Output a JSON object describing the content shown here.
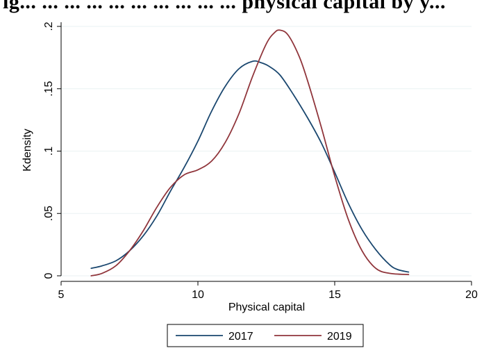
{
  "header": {
    "title_fragment": "ig... ... ... ... ... ... ... ... ... ... physical capital by y..."
  },
  "chart_data": {
    "type": "line",
    "xlabel": "Physical capital",
    "ylabel": "Kdensity",
    "xlim": [
      5,
      20
    ],
    "ylim": [
      0,
      0.2
    ],
    "x_ticks": [
      5,
      10,
      15,
      20
    ],
    "x_tick_labels": [
      "5",
      "10",
      "15",
      "20"
    ],
    "y_ticks": [
      0,
      0.05,
      0.1,
      0.15,
      0.2
    ],
    "y_tick_labels": [
      "0",
      ".05",
      ".1",
      ".15",
      ".2"
    ],
    "grid": "horizontal",
    "legend_position": "bottom",
    "series": [
      {
        "name": "2017",
        "color": "#1a476f",
        "x": [
          6.1,
          6.5,
          7.0,
          7.5,
          8.0,
          8.5,
          9.0,
          9.5,
          10.0,
          10.5,
          11.0,
          11.5,
          12.0,
          12.3,
          12.6,
          13.0,
          13.5,
          14.0,
          14.5,
          15.0,
          15.5,
          16.0,
          16.5,
          17.0,
          17.3,
          17.7
        ],
        "y": [
          0.006,
          0.008,
          0.012,
          0.02,
          0.032,
          0.048,
          0.068,
          0.087,
          0.108,
          0.132,
          0.152,
          0.166,
          0.172,
          0.171,
          0.168,
          0.161,
          0.145,
          0.127,
          0.107,
          0.083,
          0.058,
          0.037,
          0.021,
          0.009,
          0.005,
          0.003
        ]
      },
      {
        "name": "2019",
        "color": "#90353b",
        "x": [
          6.1,
          6.5,
          7.0,
          7.5,
          8.0,
          8.5,
          9.0,
          9.5,
          10.0,
          10.5,
          11.0,
          11.5,
          12.0,
          12.5,
          12.8,
          13.0,
          13.3,
          13.7,
          14.0,
          14.5,
          15.0,
          15.5,
          16.0,
          16.5,
          17.0,
          17.7
        ],
        "y": [
          0.0,
          0.002,
          0.008,
          0.02,
          0.036,
          0.055,
          0.071,
          0.081,
          0.085,
          0.092,
          0.107,
          0.13,
          0.16,
          0.186,
          0.195,
          0.197,
          0.193,
          0.176,
          0.157,
          0.12,
          0.08,
          0.045,
          0.02,
          0.006,
          0.002,
          0.001
        ]
      }
    ]
  }
}
